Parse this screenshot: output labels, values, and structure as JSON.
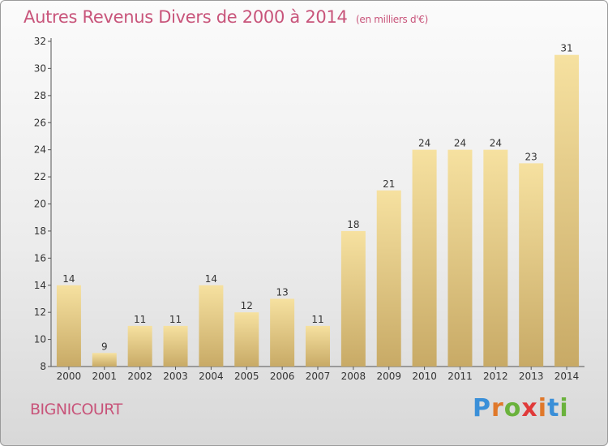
{
  "header": {
    "title": "Autres Revenus Divers de 2000 à 2014",
    "subtitle": "(en milliers d'€)"
  },
  "footer": {
    "commune": "BIGNICOURT",
    "logo_text": "Proxiti",
    "logo_colors": [
      "#3a8fd8",
      "#e0782a",
      "#6ab23c",
      "#e03a3a",
      "#e0782a",
      "#3a8fd8",
      "#6ab23c"
    ]
  },
  "colors": {
    "title": "#c8547a",
    "bar_top": "#f6e1a0",
    "bar_bottom": "#c8aa66",
    "axis": "#555555"
  },
  "chart_data": {
    "type": "bar",
    "categories": [
      "2000",
      "2001",
      "2002",
      "2003",
      "2004",
      "2005",
      "2006",
      "2007",
      "2008",
      "2009",
      "2010",
      "2011",
      "2012",
      "2013",
      "2014"
    ],
    "values": [
      14,
      9,
      11,
      11,
      14,
      12,
      13,
      11,
      18,
      21,
      24,
      24,
      24,
      23,
      31
    ],
    "title": "Autres Revenus Divers de 2000 à 2014",
    "ylim": [
      8,
      32
    ],
    "yticks": [
      8,
      10,
      12,
      14,
      16,
      18,
      20,
      22,
      24,
      26,
      28,
      30,
      32
    ],
    "grid": false,
    "data_labels": true
  }
}
